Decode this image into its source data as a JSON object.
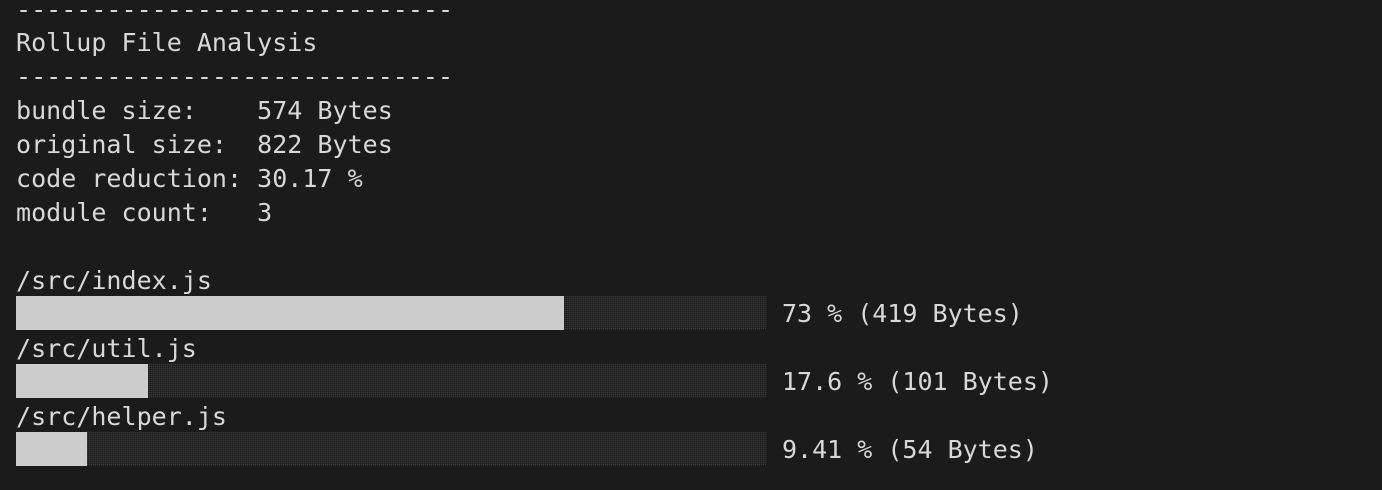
{
  "report": {
    "separator_top": "-----------------------------",
    "title": "Rollup File Analysis",
    "separator_bottom": "-----------------------------",
    "stats": [
      {
        "label": "bundle size:    ",
        "value": "574 Bytes"
      },
      {
        "label": "original size:  ",
        "value": "822 Bytes"
      },
      {
        "label": "code reduction: ",
        "value": "30.17 %"
      },
      {
        "label": "module count:   ",
        "value": "3"
      }
    ],
    "modules": [
      {
        "path": "/src/index.js",
        "percent": 73,
        "summary": "73 % (419 Bytes)"
      },
      {
        "path": "/src/util.js",
        "percent": 17.6,
        "summary": "17.6 % (101 Bytes)"
      },
      {
        "path": "/src/helper.js",
        "percent": 9.41,
        "summary": "9.41 % (54 Bytes)"
      }
    ]
  },
  "colors": {
    "background": "#1b1b1b",
    "text": "#d8d8d8",
    "bar_fill": "#cccccc"
  }
}
